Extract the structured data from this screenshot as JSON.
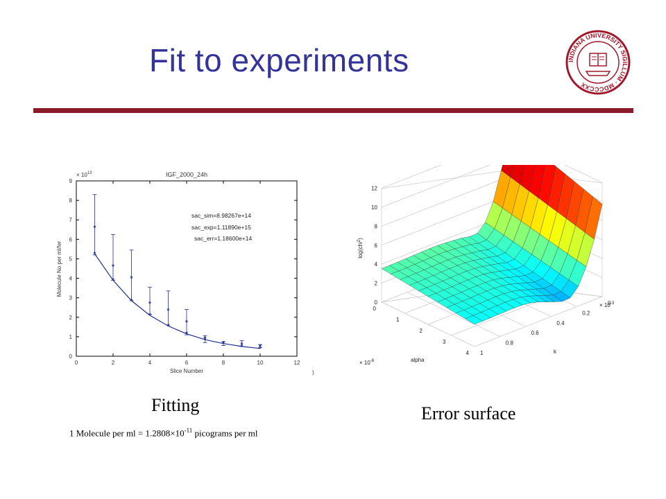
{
  "slide": {
    "title": "Fit to experiments",
    "captions": {
      "fitting": "Fitting",
      "error_surface": "Error surface",
      "conversion_prefix": "1 Molecule per ml = 1.2808×10",
      "conversion_exponent": "-11",
      "conversion_suffix": " picograms per ml"
    },
    "colors": {
      "title": "#33339a",
      "rule": "#8b1a2b",
      "seal": "#a0182a",
      "series": "#1f2f8f"
    },
    "logo": {
      "icon": "university-seal-icon",
      "text": "INDIANA UNIVERSITY SIGILLUM · MDCCCXX"
    }
  },
  "chart_data": [
    {
      "type": "scatter",
      "title": "IGF_2000_24h",
      "xlabel": "Slice Number",
      "ylabel": "Molecule No per ml/fer",
      "xlim": [
        0,
        12
      ],
      "ylim": [
        0,
        9
      ],
      "y_multiplier": "× 10",
      "y_multiplier_exp": "13",
      "xticks": [
        0,
        2,
        4,
        6,
        8,
        10,
        12
      ],
      "yticks": [
        0,
        1,
        2,
        3,
        4,
        5,
        6,
        7,
        8,
        9
      ],
      "grid": false,
      "annotations": [
        "sac_sim=8.98267e+14",
        "sac_exp=1.11890e+15",
        "sac_err=1.18600e+14"
      ],
      "stray_mark": ")",
      "series": [
        {
          "role": "experimental",
          "marker": "star",
          "x": [
            1,
            2,
            3,
            4,
            5,
            6,
            7,
            8,
            9,
            10
          ],
          "y": [
            6.6,
            4.6,
            4.0,
            2.7,
            2.35,
            1.75,
            0.9,
            0.65,
            0.6,
            0.5
          ],
          "err_low": [
            5.2,
            3.9,
            2.85,
            2.15,
            1.6,
            1.1,
            0.7,
            0.55,
            0.5,
            0.45
          ],
          "err_high": [
            8.3,
            6.25,
            5.45,
            3.55,
            3.35,
            2.4,
            1.05,
            0.75,
            0.8,
            0.6
          ]
        },
        {
          "role": "simulated",
          "marker": "star-line",
          "x": [
            1,
            2,
            3,
            4,
            5,
            6,
            7,
            8,
            9,
            10
          ],
          "y": [
            5.25,
            3.9,
            2.85,
            2.1,
            1.55,
            1.15,
            0.85,
            0.65,
            0.5,
            0.4
          ]
        }
      ]
    },
    {
      "type": "surface",
      "zlabel": "log(chi",
      "zlabel_sup": "2",
      "zlabel_end": ")",
      "xlabel": "k",
      "ylabel": "alpha",
      "zticks": [
        0,
        2,
        4,
        6,
        8,
        10,
        12
      ],
      "k_ticks": [
        "0",
        "0.2",
        "0.4",
        "0.6",
        "0.8",
        "1"
      ],
      "k_multiplier": "× 10",
      "k_multiplier_exp": "-3",
      "alpha_ticks": [
        "0",
        "1",
        "2",
        "3",
        "4"
      ],
      "alpha_multiplier": "× 10",
      "alpha_multiplier_exp": "-6",
      "zlim": [
        0,
        12
      ],
      "grid": true,
      "colormap": "jet"
    }
  ]
}
